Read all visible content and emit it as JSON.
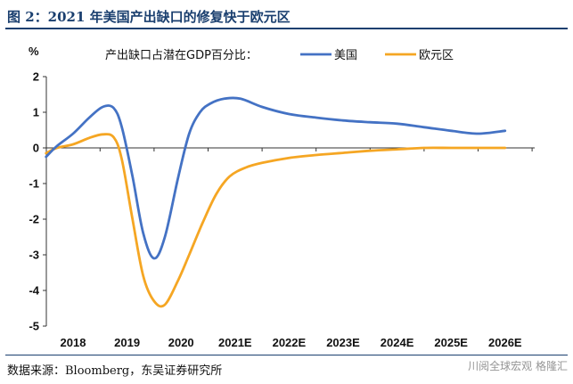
{
  "figure": {
    "title": "图 2：2021 年美国产出缺口的修复快于欧元区",
    "source": "数据来源：Bloomberg，东吴证券研究所",
    "watermark": "川阅全球宏观 格隆汇"
  },
  "chart_data": {
    "type": "line",
    "ylabel": "%",
    "ylim": [
      -5,
      2
    ],
    "yticks": [
      2,
      1,
      0,
      -1,
      -2,
      -3,
      -4,
      -5
    ],
    "categories": [
      "2018",
      "2019",
      "2020",
      "2021E",
      "2022E",
      "2023E",
      "2024E",
      "2025E",
      "2026E"
    ],
    "legend_title": "产出缺口占潜在GDP百分比：",
    "legend_position": "top",
    "grid": false,
    "colors": {
      "美国": "#4472c4",
      "欧元区": "#f5a623"
    },
    "series": [
      {
        "name": "美国",
        "x": [
          -0.5,
          -0.3,
          0.0,
          0.3,
          0.55,
          0.75,
          0.9,
          1.1,
          1.3,
          1.5,
          1.7,
          1.95,
          2.15,
          2.35,
          2.55,
          2.8,
          3.1,
          3.5,
          4.0,
          4.5,
          5.0,
          5.5,
          6.0,
          6.5,
          7.0,
          7.5,
          8.0
        ],
        "values": [
          -0.25,
          0.05,
          0.4,
          0.85,
          1.15,
          1.12,
          0.6,
          -0.8,
          -2.4,
          -3.1,
          -2.5,
          -0.8,
          0.4,
          1.0,
          1.25,
          1.38,
          1.38,
          1.15,
          0.95,
          0.85,
          0.77,
          0.72,
          0.68,
          0.58,
          0.48,
          0.4,
          0.48
        ]
      },
      {
        "name": "欧元区",
        "x": [
          -0.5,
          -0.3,
          0.0,
          0.3,
          0.55,
          0.75,
          0.9,
          1.1,
          1.3,
          1.5,
          1.7,
          1.95,
          2.15,
          2.4,
          2.65,
          2.9,
          3.2,
          3.5,
          4.0,
          4.5,
          5.0,
          5.5,
          6.0,
          6.5,
          7.0,
          7.5,
          8.0
        ],
        "values": [
          -0.15,
          0.0,
          0.1,
          0.28,
          0.38,
          0.3,
          -0.3,
          -2.0,
          -3.6,
          -4.3,
          -4.4,
          -3.7,
          -3.0,
          -2.1,
          -1.3,
          -0.8,
          -0.55,
          -0.42,
          -0.28,
          -0.2,
          -0.14,
          -0.08,
          -0.04,
          0.0,
          0.0,
          0.0,
          0.0
        ]
      }
    ]
  }
}
